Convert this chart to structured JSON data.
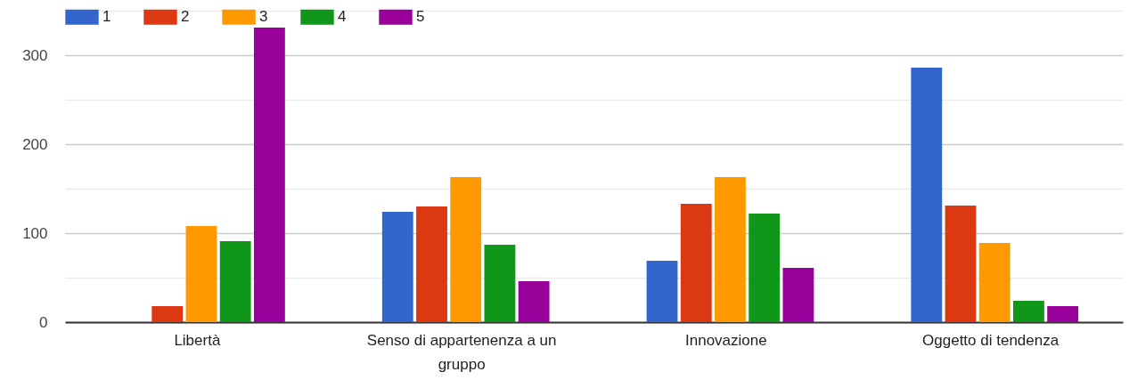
{
  "chart_data": {
    "type": "bar",
    "categories": [
      "Libertà",
      "Senso di appartenenza a un gruppo",
      "Innovazione",
      "Oggetto di tendenza"
    ],
    "series": [
      {
        "name": "1",
        "color": "#3366cc",
        "values": [
          0,
          124,
          69,
          286
        ]
      },
      {
        "name": "2",
        "color": "#dc3912",
        "values": [
          18,
          130,
          133,
          131
        ]
      },
      {
        "name": "3",
        "color": "#ff9900",
        "values": [
          108,
          163,
          163,
          89
        ]
      },
      {
        "name": "4",
        "color": "#109618",
        "values": [
          91,
          87,
          122,
          24
        ]
      },
      {
        "name": "5",
        "color": "#990099",
        "values": [
          331,
          46,
          61,
          18
        ]
      }
    ],
    "ylim": [
      0,
      350
    ],
    "yticks": [
      0,
      {
        "value": 50,
        "label": null
      },
      100,
      {
        "value": 150,
        "label": null
      },
      200,
      {
        "value": 250,
        "label": null
      },
      300,
      {
        "value": 350,
        "label": null
      }
    ],
    "grid": "y",
    "legend": "top left"
  }
}
